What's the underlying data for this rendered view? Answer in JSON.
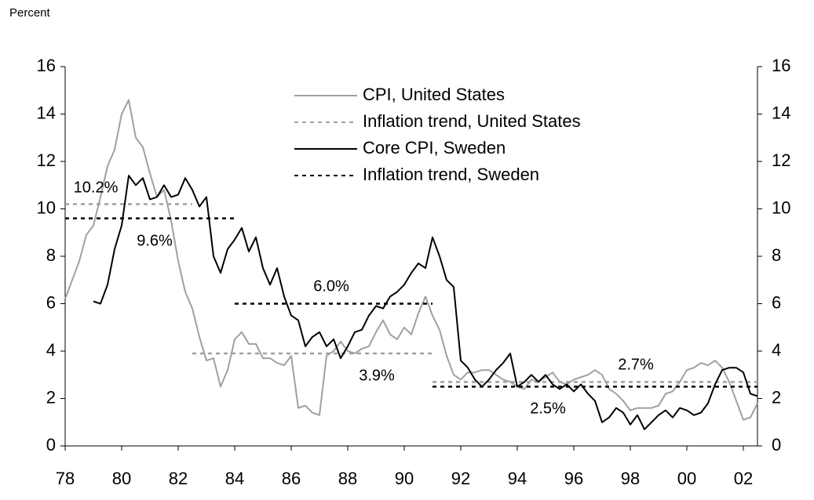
{
  "chart_data": {
    "type": "line",
    "y_axis_label": "Percent",
    "xlim": [
      1978,
      2002.5
    ],
    "xticks": [
      {
        "value": 1978,
        "label": "78"
      },
      {
        "value": 1980,
        "label": "80"
      },
      {
        "value": 1982,
        "label": "82"
      },
      {
        "value": 1984,
        "label": "84"
      },
      {
        "value": 1986,
        "label": "86"
      },
      {
        "value": 1988,
        "label": "88"
      },
      {
        "value": 1990,
        "label": "90"
      },
      {
        "value": 1992,
        "label": "92"
      },
      {
        "value": 1994,
        "label": "94"
      },
      {
        "value": 1996,
        "label": "96"
      },
      {
        "value": 1998,
        "label": "98"
      },
      {
        "value": 2000,
        "label": "00"
      },
      {
        "value": 2002,
        "label": "02"
      }
    ],
    "ylim": [
      0,
      16
    ],
    "yticks": [
      0,
      2,
      4,
      6,
      8,
      10,
      12,
      14,
      16
    ],
    "y2lim": [
      0,
      16
    ],
    "y2ticks": [
      0,
      2,
      4,
      6,
      8,
      10,
      12,
      14,
      16
    ],
    "series": [
      {
        "name": "CPI, United States",
        "color": "#a0a0a0",
        "dashed": false,
        "x": [
          1978,
          1978.25,
          1978.5,
          1978.75,
          1979,
          1979.25,
          1979.5,
          1979.75,
          1980,
          1980.25,
          1980.5,
          1980.75,
          1981,
          1981.25,
          1981.5,
          1981.75,
          1982,
          1982.25,
          1982.5,
          1982.75,
          1983,
          1983.25,
          1983.5,
          1983.75,
          1984,
          1984.25,
          1984.5,
          1984.75,
          1985,
          1985.25,
          1985.5,
          1985.75,
          1986,
          1986.25,
          1986.5,
          1986.75,
          1987,
          1987.25,
          1987.5,
          1987.75,
          1988,
          1988.25,
          1988.5,
          1988.75,
          1989,
          1989.25,
          1989.5,
          1989.75,
          1990,
          1990.25,
          1990.5,
          1990.75,
          1991,
          1991.25,
          1991.5,
          1991.75,
          1992,
          1992.25,
          1992.5,
          1992.75,
          1993,
          1993.25,
          1993.5,
          1993.75,
          1994,
          1994.25,
          1994.5,
          1994.75,
          1995,
          1995.25,
          1995.5,
          1995.75,
          1996,
          1996.25,
          1996.5,
          1996.75,
          1997,
          1997.25,
          1997.5,
          1997.75,
          1998,
          1998.25,
          1998.5,
          1998.75,
          1999,
          1999.25,
          1999.5,
          1999.75,
          2000,
          2000.25,
          2000.5,
          2000.75,
          2001,
          2001.25,
          2001.5,
          2001.75,
          2002,
          2002.25,
          2002.5
        ],
        "values": [
          6.2,
          7.0,
          7.8,
          8.9,
          9.3,
          10.5,
          11.8,
          12.5,
          14.0,
          14.6,
          13.0,
          12.6,
          11.5,
          10.5,
          10.8,
          9.5,
          7.8,
          6.5,
          5.8,
          4.6,
          3.6,
          3.7,
          2.5,
          3.2,
          4.5,
          4.8,
          4.3,
          4.3,
          3.7,
          3.7,
          3.5,
          3.4,
          3.8,
          1.6,
          1.7,
          1.4,
          1.3,
          3.8,
          4.0,
          4.4,
          4.0,
          3.9,
          4.1,
          4.2,
          4.8,
          5.3,
          4.7,
          4.5,
          5.0,
          4.7,
          5.6,
          6.3,
          5.5,
          4.9,
          3.8,
          3.0,
          2.8,
          3.1,
          3.1,
          3.2,
          3.2,
          3.0,
          2.8,
          2.7,
          2.5,
          2.4,
          2.8,
          2.7,
          2.9,
          3.1,
          2.7,
          2.6,
          2.8,
          2.9,
          3.0,
          3.2,
          3.0,
          2.4,
          2.2,
          1.9,
          1.5,
          1.6,
          1.6,
          1.6,
          1.7,
          2.2,
          2.3,
          2.7,
          3.2,
          3.3,
          3.5,
          3.4,
          3.6,
          3.3,
          2.7,
          1.9,
          1.1,
          1.2,
          1.8
        ]
      },
      {
        "name": "Inflation trend, United States",
        "color": "#a0a0a0",
        "dashed": true,
        "segments": [
          {
            "start": 1978,
            "end": 1982.5,
            "value": 10.2,
            "value_label": "10.2%"
          },
          {
            "start": 1982.5,
            "end": 1991,
            "value": 3.9,
            "value_label": "3.9%"
          },
          {
            "start": 1991,
            "end": 2002.5,
            "value": 2.7,
            "value_label": "2.7%"
          }
        ]
      },
      {
        "name": "Core CPI, Sweden",
        "color": "#000000",
        "dashed": false,
        "x": [
          1979,
          1979.25,
          1979.5,
          1979.75,
          1980,
          1980.25,
          1980.5,
          1980.75,
          1981,
          1981.25,
          1981.5,
          1981.75,
          1982,
          1982.25,
          1982.5,
          1982.75,
          1983,
          1983.25,
          1983.5,
          1983.75,
          1984,
          1984.25,
          1984.5,
          1984.75,
          1985,
          1985.25,
          1985.5,
          1985.75,
          1986,
          1986.25,
          1986.5,
          1986.75,
          1987,
          1987.25,
          1987.5,
          1987.75,
          1988,
          1988.25,
          1988.5,
          1988.75,
          1989,
          1989.25,
          1989.5,
          1989.75,
          1990,
          1990.25,
          1990.5,
          1990.75,
          1991,
          1991.25,
          1991.5,
          1991.75,
          1992,
          1992.25,
          1992.5,
          1992.75,
          1993,
          1993.25,
          1993.5,
          1993.75,
          1994,
          1994.25,
          1994.5,
          1994.75,
          1995,
          1995.25,
          1995.5,
          1995.75,
          1996,
          1996.25,
          1996.5,
          1996.75,
          1997,
          1997.25,
          1997.5,
          1997.75,
          1998,
          1998.25,
          1998.5,
          1998.75,
          1999,
          1999.25,
          1999.5,
          1999.75,
          2000,
          2000.25,
          2000.5,
          2000.75,
          2001,
          2001.25,
          2001.5,
          2001.75,
          2002,
          2002.25,
          2002.5
        ],
        "values": [
          6.1,
          6.0,
          6.8,
          8.3,
          9.3,
          11.4,
          11.0,
          11.3,
          10.4,
          10.5,
          11.0,
          10.5,
          10.6,
          11.3,
          10.8,
          10.1,
          10.5,
          8.0,
          7.3,
          8.3,
          8.7,
          9.2,
          8.2,
          8.8,
          7.5,
          6.8,
          7.5,
          6.3,
          5.5,
          5.3,
          4.2,
          4.6,
          4.8,
          4.2,
          4.5,
          3.7,
          4.2,
          4.8,
          4.9,
          5.5,
          5.9,
          5.8,
          6.3,
          6.5,
          6.8,
          7.3,
          7.7,
          7.5,
          8.8,
          8.0,
          7.0,
          6.7,
          3.6,
          3.3,
          2.8,
          2.5,
          2.8,
          3.2,
          3.5,
          3.9,
          2.5,
          2.7,
          3.0,
          2.7,
          3.0,
          2.6,
          2.4,
          2.6,
          2.3,
          2.6,
          2.2,
          1.9,
          1.0,
          1.2,
          1.6,
          1.4,
          0.9,
          1.3,
          0.7,
          1.0,
          1.3,
          1.5,
          1.2,
          1.6,
          1.5,
          1.3,
          1.4,
          1.8,
          2.6,
          3.2,
          3.3,
          3.3,
          3.1,
          2.2,
          2.1
        ]
      },
      {
        "name": "Inflation trend, Sweden",
        "color": "#000000",
        "dashed": true,
        "segments": [
          {
            "start": 1978,
            "end": 1984,
            "value": 9.6,
            "value_label": "9.6%"
          },
          {
            "start": 1984,
            "end": 1991,
            "value": 6.0,
            "value_label": "6.0%"
          },
          {
            "start": 1991,
            "end": 2002.5,
            "value": 2.5,
            "value_label": "2.5%"
          }
        ]
      }
    ]
  }
}
